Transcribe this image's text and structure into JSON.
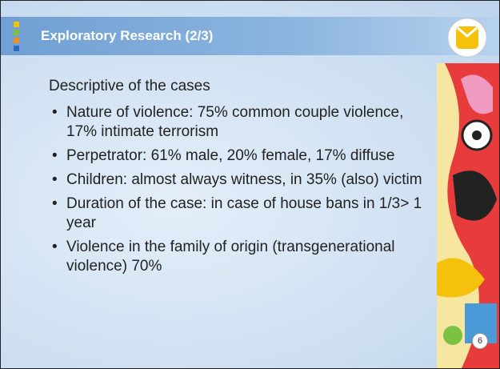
{
  "header": {
    "title": "Exploratory Research (2/3)"
  },
  "subtitle": "Descriptive of the cases",
  "bullets": [
    "Nature of violence: 75% common couple violence, 17% intimate terrorism",
    "Perpetrator: 61% male, 20% female, 17% diffuse",
    "Children: almost always witness, in 35% (also) victim",
    "Duration of the case: in case of house bans in 1/3> 1 year",
    "Violence in the family of origin (transgenerational violence) 70%"
  ],
  "page_number": "6"
}
